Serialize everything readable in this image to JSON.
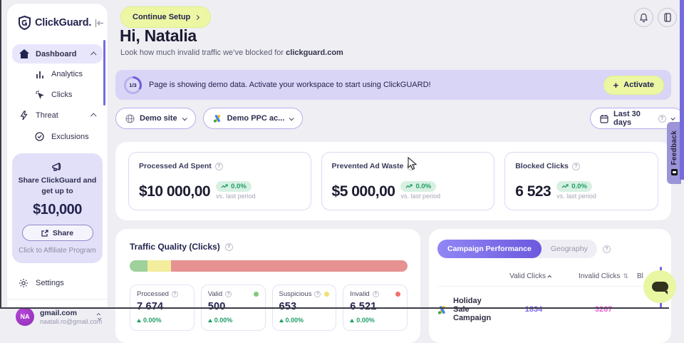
{
  "brand": {
    "name": "ClickGuard.",
    "logo_icon": "shield-icon",
    "collapse_icon": "collapse-sidebar-icon"
  },
  "sidebar": {
    "nav": [
      {
        "label": "Dashboard",
        "icon": "home-icon",
        "active": true
      },
      {
        "label": "Analytics",
        "icon": "bar-chart-icon"
      },
      {
        "label": "Clicks",
        "icon": "click-icon"
      },
      {
        "label": "Threat",
        "icon": "lightning-icon"
      },
      {
        "label": "Exclusions",
        "icon": "check-circle-icon"
      }
    ],
    "promo": {
      "icon": "megaphone-icon",
      "line1": "Share ClickGuard and",
      "line2": "get up to",
      "amount": "$10,000",
      "share_label": "Share",
      "affiliate": "Click to Affiliate Program"
    },
    "settings_label": "Settings",
    "account": {
      "initials": "NA",
      "name": "gmail.com",
      "email": "naatali.ro@gmail.com"
    }
  },
  "header": {
    "continue_setup": "Continue Setup",
    "greeting": "Hi, Natalia",
    "subtitle_prefix": "Look how much invalid traffic we’ve blocked for ",
    "subtitle_domain": "clickguard.com",
    "icons": [
      "bell-icon",
      "docs-icon"
    ]
  },
  "banner": {
    "step": "1/3",
    "message": "Page is showing demo data. Activate your workspace to start using ClickGUARD!",
    "plus_glyph": "+",
    "activate_label": "Activate",
    "accent_color": "#6c5ad8",
    "background": "#d9d5f6",
    "button_color": "#edf7a3"
  },
  "filters": {
    "site": "Demo site",
    "ppc_account": "Demo PPC ac...",
    "date_range": "Last 30 days"
  },
  "stats": [
    {
      "label": "Processed Ad Spent",
      "value": "$10 000,00",
      "change": "0.0%",
      "vs": "vs. last period"
    },
    {
      "label": "Prevented Ad Waste",
      "value": "$5 000,00",
      "change": "0.0%",
      "vs": "vs. last period"
    },
    {
      "label": "Blocked Clicks",
      "value": "6 523",
      "change": "0.0%",
      "vs": "vs. last period"
    }
  ],
  "traffic_quality": {
    "title": "Traffic Quality (Clicks)",
    "segments": [
      {
        "name": "valid",
        "pct": 6.5,
        "color": "#9fd19c"
      },
      {
        "name": "suspicious",
        "pct": 8.5,
        "color": "#f3ed9d"
      },
      {
        "name": "invalid",
        "pct": 85,
        "color": "#e69292"
      }
    ],
    "cards": [
      {
        "label": "Processed",
        "value": "7 674",
        "change": "0.00%",
        "dot": null
      },
      {
        "label": "Valid",
        "value": "500",
        "change": "0.00%",
        "dot": "#84c77e"
      },
      {
        "label": "Suspicious",
        "value": "653",
        "change": "0.00%",
        "dot": "#f0e070"
      },
      {
        "label": "Invalid",
        "value": "6 521",
        "change": "0.00%",
        "dot": "#ef7070"
      }
    ]
  },
  "campaigns": {
    "tabs": [
      {
        "label": "Campaign Performance",
        "active": true
      },
      {
        "label": "Geography",
        "active": false
      }
    ],
    "columns": {
      "valid": "Valid Clicks",
      "invalid": "Invalid Clicks",
      "blocked_truncated": "Bl"
    },
    "rows": [
      {
        "name": "Holiday Sale Campaign",
        "valid_clicks": "1834",
        "invalid_clicks": "3267",
        "valid_color": "#7b68ee",
        "invalid_color": "#ea63d0",
        "icon": "google-ads-icon"
      }
    ]
  },
  "feedback": {
    "label": "Feedback"
  }
}
